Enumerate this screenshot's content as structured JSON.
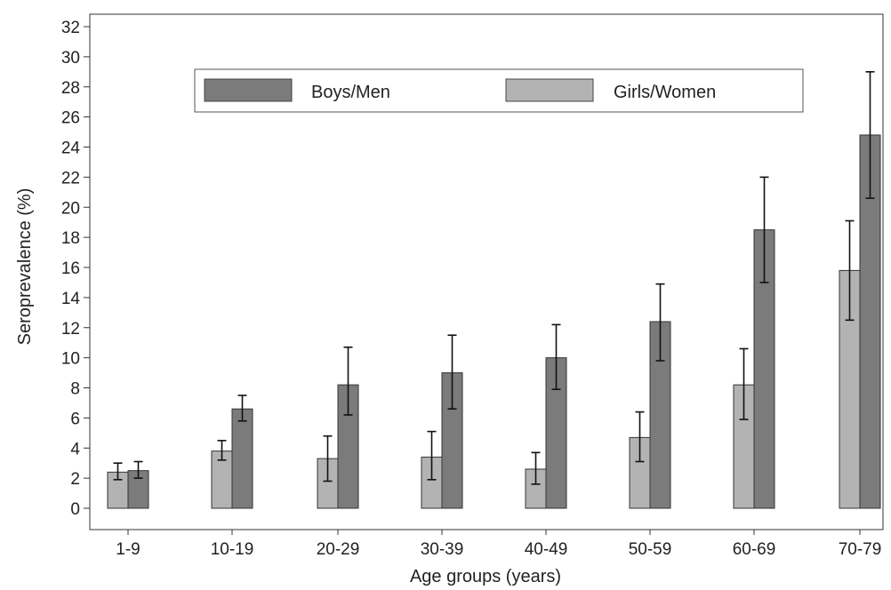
{
  "chart_data": {
    "type": "bar",
    "title": "",
    "xlabel": "Age groups (years)",
    "ylabel": "Seroprevalence (%)",
    "ylim": [
      0,
      32
    ],
    "yticks": [
      "0",
      "2",
      "4",
      "6",
      "8",
      "10",
      "12",
      "14",
      "16",
      "18",
      "20",
      "22",
      "24",
      "26",
      "28",
      "30",
      "32"
    ],
    "categories": [
      "1-9",
      "10-19",
      "20-29",
      "30-39",
      "40-49",
      "50-59",
      "60-69",
      "70-79"
    ],
    "legend_position": "top",
    "error_bars": true,
    "series": [
      {
        "name": "Girls/Women",
        "color": "#b3b3b3",
        "values": [
          2.4,
          3.8,
          3.3,
          3.4,
          2.6,
          4.7,
          8.2,
          15.8
        ],
        "lower": [
          1.9,
          3.2,
          1.8,
          1.9,
          1.6,
          3.1,
          5.9,
          12.5
        ],
        "upper": [
          3.0,
          4.5,
          4.8,
          5.1,
          3.7,
          6.4,
          10.6,
          19.1
        ]
      },
      {
        "name": "Boys/Men",
        "color": "#7b7b7b",
        "values": [
          2.5,
          6.6,
          8.2,
          9.0,
          10.0,
          12.4,
          18.5,
          24.8
        ],
        "lower": [
          2.0,
          5.8,
          6.2,
          6.6,
          7.9,
          9.8,
          15.0,
          20.6
        ],
        "upper": [
          3.1,
          7.5,
          10.7,
          11.5,
          12.2,
          14.9,
          22.0,
          29.0
        ]
      }
    ]
  },
  "legend": {
    "items": [
      {
        "label": "Boys/Men",
        "color": "#7b7b7b"
      },
      {
        "label": "Girls/Women",
        "color": "#b3b3b3"
      }
    ]
  }
}
